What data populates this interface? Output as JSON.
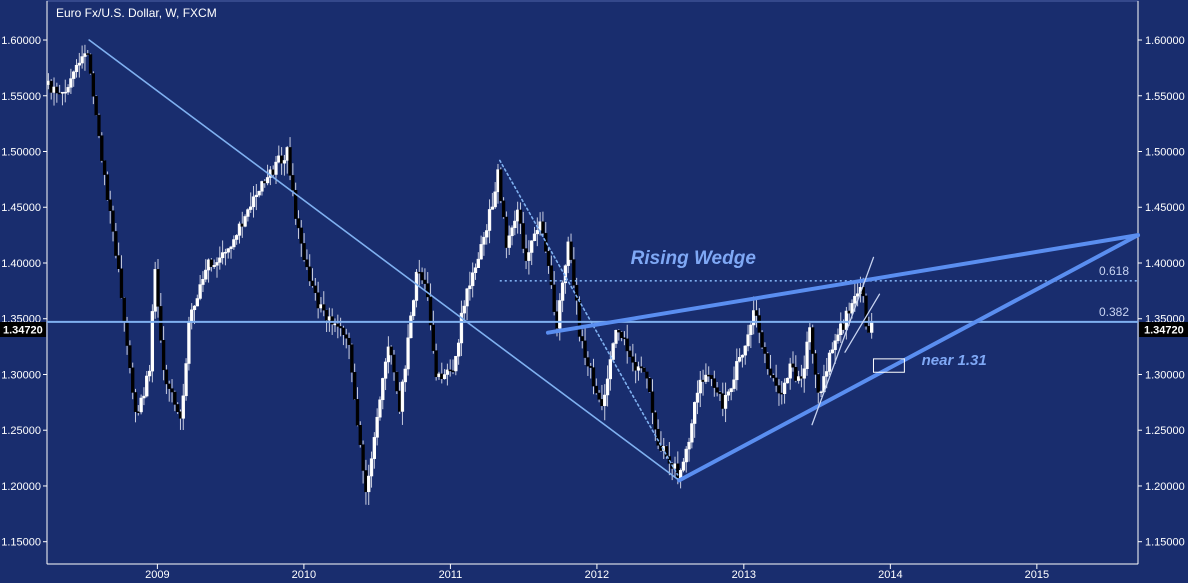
{
  "title": "Euro Fx/U.S. Dollar, W, FXCM",
  "colors": {
    "background": "#192d6e",
    "line": "#7fb0f0",
    "bold": "#5a8ef0",
    "text": "#ffffff",
    "annotation": "#7fa8f5"
  },
  "price_label": "1.34720",
  "chart_data": {
    "type": "candlestick",
    "instrument": "Euro Fx/U.S. Dollar",
    "interval": "W",
    "source": "FXCM",
    "xlim": [
      "2008-04-01",
      "2015-09-10"
    ],
    "ylim": [
      1.13,
      1.635
    ],
    "x_ticks": [
      "2009",
      "2010",
      "2011",
      "2012",
      "2013",
      "2014",
      "2015"
    ],
    "y_ticks": [
      "1.15000",
      "1.20000",
      "1.25000",
      "1.30000",
      "1.35000",
      "1.40000",
      "1.45000",
      "1.50000",
      "1.55000",
      "1.60000"
    ],
    "price_anchors": [
      [
        "2008-04-01",
        1.56
      ],
      [
        "2008-05-10",
        1.55
      ],
      [
        "2008-07-15",
        1.59
      ],
      [
        "2008-08-15",
        1.5
      ],
      [
        "2008-09-20",
        1.42
      ],
      [
        "2008-10-20",
        1.33
      ],
      [
        "2008-11-10",
        1.26
      ],
      [
        "2008-12-15",
        1.3
      ],
      [
        "2008-12-29",
        1.4
      ],
      [
        "2009-01-20",
        1.3
      ],
      [
        "2009-03-04",
        1.26
      ],
      [
        "2009-03-25",
        1.35
      ],
      [
        "2009-05-15",
        1.4
      ],
      [
        "2009-06-30",
        1.41
      ],
      [
        "2009-09-15",
        1.47
      ],
      [
        "2009-11-25",
        1.5
      ],
      [
        "2009-12-20",
        1.43
      ],
      [
        "2010-02-10",
        1.36
      ],
      [
        "2010-03-25",
        1.34
      ],
      [
        "2010-04-25",
        1.33
      ],
      [
        "2010-06-07",
        1.19
      ],
      [
        "2010-07-10",
        1.27
      ],
      [
        "2010-08-06",
        1.33
      ],
      [
        "2010-08-31",
        1.27
      ],
      [
        "2010-10-15",
        1.4
      ],
      [
        "2010-11-10",
        1.37
      ],
      [
        "2010-11-30",
        1.3
      ],
      [
        "2011-01-10",
        1.3
      ],
      [
        "2011-02-10",
        1.37
      ],
      [
        "2011-03-15",
        1.4
      ],
      [
        "2011-05-04",
        1.48
      ],
      [
        "2011-05-25",
        1.41
      ],
      [
        "2011-06-20",
        1.45
      ],
      [
        "2011-07-10",
        1.4
      ],
      [
        "2011-08-20",
        1.44
      ],
      [
        "2011-09-26",
        1.34
      ],
      [
        "2011-10-27",
        1.42
      ],
      [
        "2011-11-25",
        1.33
      ],
      [
        "2011-12-30",
        1.29
      ],
      [
        "2012-01-15",
        1.27
      ],
      [
        "2012-02-24",
        1.34
      ],
      [
        "2012-04-05",
        1.31
      ],
      [
        "2012-05-10",
        1.3
      ],
      [
        "2012-06-01",
        1.24
      ],
      [
        "2012-07-24",
        1.21
      ],
      [
        "2012-08-25",
        1.25
      ],
      [
        "2012-09-15",
        1.29
      ],
      [
        "2012-10-15",
        1.3
      ],
      [
        "2012-11-15",
        1.27
      ],
      [
        "2012-12-31",
        1.32
      ],
      [
        "2013-02-01",
        1.36
      ],
      [
        "2013-02-28",
        1.31
      ],
      [
        "2013-04-01",
        1.28
      ],
      [
        "2013-05-01",
        1.31
      ],
      [
        "2013-05-25",
        1.29
      ],
      [
        "2013-06-18",
        1.34
      ],
      [
        "2013-07-09",
        1.28
      ],
      [
        "2013-08-20",
        1.33
      ],
      [
        "2013-10-25",
        1.38
      ],
      [
        "2013-11-08",
        1.33
      ],
      [
        "2013-11-15",
        1.35
      ]
    ],
    "current_price": 1.3472,
    "horizontal_levels": [
      {
        "label": "0.382",
        "value": 1.3472,
        "style": "solid"
      },
      {
        "label": "0.618",
        "value": 1.384,
        "style": "dotted",
        "from": "2011-05-04"
      }
    ],
    "trendlines": [
      {
        "from": [
          "2008-07-15",
          1.6
        ],
        "to": [
          "2012-07-24",
          1.205
        ],
        "style": "solid"
      },
      {
        "from": [
          "2011-05-04",
          1.492
        ],
        "to": [
          "2012-07-20",
          1.21
        ],
        "style": "dotted"
      },
      {
        "from": [
          "2012-07-24",
          1.205
        ],
        "to": [
          "2015-09-10",
          1.425
        ],
        "style": "bold"
      },
      {
        "from": [
          "2011-09-01",
          1.3375
        ],
        "to": [
          "2015-09-10",
          1.425
        ],
        "style": "bold"
      },
      {
        "from": [
          "2013-06-20",
          1.255
        ],
        "to": [
          "2013-11-20",
          1.405
        ],
        "style": "thin"
      },
      {
        "from": [
          "2013-09-10",
          1.32
        ],
        "to": [
          "2013-12-05",
          1.372
        ],
        "style": "thin"
      }
    ],
    "annotations": [
      {
        "text": "Rising Wedge",
        "date": "2012-03-25",
        "price": 1.399
      },
      {
        "text": "near 1.31",
        "date": "2014-03-20",
        "price": 1.3085
      }
    ],
    "annotation_box": {
      "from": [
        "2013-11-20",
        1.314
      ],
      "to": [
        "2014-02-05",
        1.302
      ]
    }
  }
}
